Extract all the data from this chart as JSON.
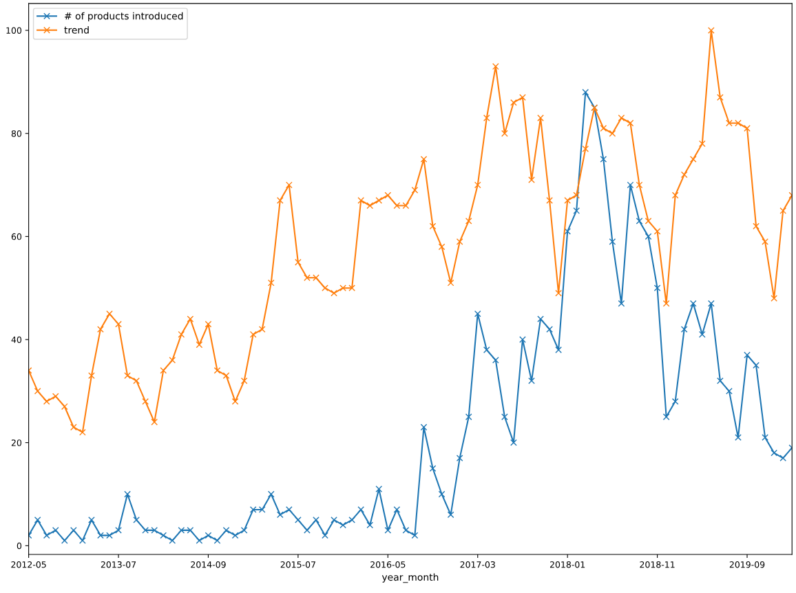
{
  "chart_data": {
    "type": "line",
    "xlabel": "year_month",
    "categories": [
      "2012-05",
      null,
      null,
      null,
      null,
      null,
      null,
      null,
      null,
      null,
      "2013-07",
      null,
      null,
      null,
      null,
      null,
      null,
      null,
      null,
      null,
      "2014-09",
      null,
      null,
      null,
      null,
      null,
      null,
      null,
      null,
      null,
      "2015-07",
      null,
      null,
      null,
      null,
      null,
      null,
      null,
      null,
      null,
      "2016-05",
      null,
      null,
      null,
      null,
      null,
      null,
      null,
      null,
      null,
      "2017-03",
      null,
      null,
      null,
      null,
      null,
      null,
      null,
      null,
      null,
      "2018-01",
      null,
      null,
      null,
      null,
      null,
      null,
      null,
      null,
      null,
      "2018-11",
      null,
      null,
      null,
      null,
      null,
      null,
      null,
      null,
      null,
      "2019-09",
      null,
      null,
      null,
      null,
      null
    ],
    "series": [
      {
        "name": "# of products introduced",
        "color": "#1f77b4",
        "values": [
          2,
          5,
          2,
          3,
          1,
          3,
          1,
          5,
          2,
          2,
          3,
          10,
          5,
          3,
          3,
          2,
          1,
          3,
          3,
          1,
          2,
          1,
          3,
          2,
          3,
          7,
          7,
          10,
          6,
          7,
          5,
          3,
          5,
          2,
          5,
          4,
          5,
          7,
          4,
          11,
          3,
          7,
          3,
          2,
          23,
          15,
          10,
          6,
          17,
          25,
          45,
          38,
          36,
          25,
          20,
          40,
          32,
          44,
          42,
          38,
          61,
          65,
          88,
          85,
          75,
          59,
          47,
          70,
          63,
          60,
          50,
          25,
          28,
          42,
          47,
          41,
          47,
          32,
          30,
          21,
          37,
          35,
          21,
          18,
          17,
          19
        ]
      },
      {
        "name": "trend",
        "color": "#ff7f0e",
        "values": [
          34,
          30,
          28,
          29,
          27,
          23,
          22,
          33,
          42,
          45,
          43,
          33,
          32,
          28,
          24,
          34,
          36,
          41,
          44,
          39,
          43,
          34,
          33,
          28,
          32,
          41,
          42,
          51,
          67,
          70,
          55,
          52,
          52,
          50,
          49,
          50,
          50,
          67,
          66,
          67,
          68,
          66,
          66,
          69,
          75,
          62,
          58,
          51,
          59,
          63,
          70,
          83,
          93,
          80,
          86,
          87,
          71,
          83,
          67,
          49,
          67,
          68,
          77,
          85,
          81,
          80,
          83,
          82,
          70,
          63,
          61,
          47,
          68,
          72,
          75,
          78,
          100,
          87,
          82,
          82,
          81,
          62,
          59,
          48,
          65,
          68
        ]
      }
    ],
    "ylim": [
      -1.7,
      105.2
    ],
    "yticks": [
      0,
      20,
      40,
      60,
      80,
      100
    ],
    "marker": "cross",
    "line_style": "solid",
    "legend": "top left",
    "grid": false
  }
}
